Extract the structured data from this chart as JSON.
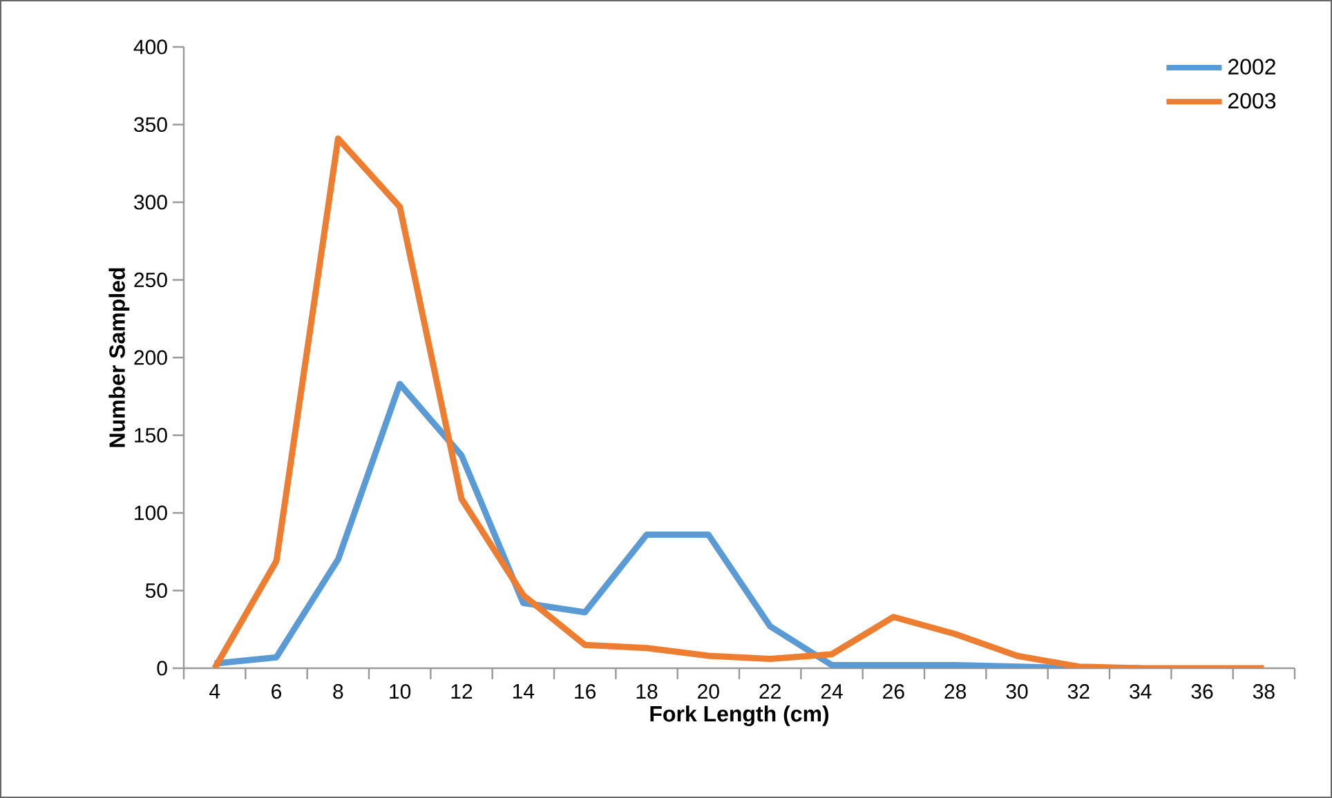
{
  "chart_data": {
    "type": "line",
    "xlabel": "Fork Length (cm)",
    "ylabel": "Number Sampled",
    "categories": [
      "4",
      "6",
      "8",
      "10",
      "12",
      "14",
      "16",
      "18",
      "20",
      "22",
      "24",
      "26",
      "28",
      "30",
      "32",
      "34",
      "36",
      "38"
    ],
    "series": [
      {
        "name": "2002",
        "color": "#5b9bd5",
        "values": [
          3,
          7,
          70,
          183,
          137,
          42,
          36,
          86,
          86,
          27,
          2,
          2,
          2,
          1,
          0,
          0,
          null,
          null
        ]
      },
      {
        "name": "2003",
        "color": "#ed7d31",
        "values": [
          0,
          69,
          341,
          297,
          109,
          47,
          15,
          13,
          8,
          6,
          9,
          33,
          22,
          8,
          1,
          0,
          0,
          0
        ]
      }
    ],
    "ylim": [
      0,
      400
    ],
    "yticks": [
      0,
      50,
      100,
      150,
      200,
      250,
      300,
      350,
      400
    ],
    "legend": "top right",
    "grid": false,
    "marker": "none",
    "line_style": "solid"
  }
}
